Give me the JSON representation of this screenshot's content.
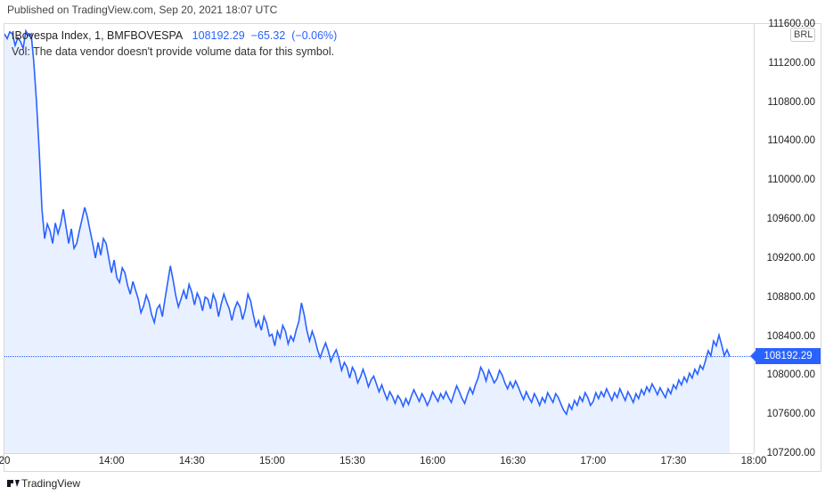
{
  "header": {
    "published_text": "Published on TradingView.com, Sep 20, 2021 18:07 UTC"
  },
  "chart": {
    "type": "area",
    "symbol": "IBovespa Index",
    "interval": "1",
    "exchange": "BMFBOVESPA",
    "last_value": "108192.29",
    "change_abs": "−65.32",
    "change_pct": "(−0.06%)",
    "volume_text": "Vol: The data vendor doesn't provide volume data for this symbol.",
    "currency": "BRL",
    "line_color": "#2962ff",
    "fill_color": "#e9f0ff",
    "background_color": "#ffffff",
    "ylim": [
      107200,
      111600
    ],
    "xlim_minutes": [
      800,
      1080
    ],
    "y_ticks": [
      111600,
      111200,
      110800,
      110400,
      110000,
      109600,
      109200,
      108800,
      108400,
      108000,
      107600,
      107200
    ],
    "x_ticks": [
      {
        "label": "20",
        "minute": 800
      },
      {
        "label": "14:00",
        "minute": 840
      },
      {
        "label": "14:30",
        "minute": 870
      },
      {
        "label": "15:00",
        "minute": 900
      },
      {
        "label": "15:30",
        "minute": 930
      },
      {
        "label": "16:00",
        "minute": 960
      },
      {
        "label": "16:30",
        "minute": 990
      },
      {
        "label": "17:00",
        "minute": 1020
      },
      {
        "label": "17:30",
        "minute": 1050
      },
      {
        "label": "18:00",
        "minute": 1080
      }
    ],
    "current_line_value": 108192.29,
    "data": [
      [
        800,
        111500
      ],
      [
        801,
        111450
      ],
      [
        802,
        111520
      ],
      [
        803,
        111500
      ],
      [
        804,
        111380
      ],
      [
        805,
        111460
      ],
      [
        806,
        111420
      ],
      [
        807,
        111350
      ],
      [
        808,
        111530
      ],
      [
        809,
        111480
      ],
      [
        810,
        111500
      ],
      [
        811,
        111200
      ],
      [
        812,
        110800
      ],
      [
        813,
        110300
      ],
      [
        814,
        109700
      ],
      [
        815,
        109400
      ],
      [
        816,
        109550
      ],
      [
        817,
        109480
      ],
      [
        818,
        109350
      ],
      [
        819,
        109560
      ],
      [
        820,
        109450
      ],
      [
        821,
        109550
      ],
      [
        822,
        109700
      ],
      [
        823,
        109520
      ],
      [
        824,
        109350
      ],
      [
        825,
        109500
      ],
      [
        826,
        109300
      ],
      [
        827,
        109350
      ],
      [
        828,
        109480
      ],
      [
        829,
        109600
      ],
      [
        830,
        109720
      ],
      [
        831,
        109620
      ],
      [
        832,
        109480
      ],
      [
        833,
        109350
      ],
      [
        834,
        109200
      ],
      [
        835,
        109360
      ],
      [
        836,
        109230
      ],
      [
        837,
        109400
      ],
      [
        838,
        109350
      ],
      [
        839,
        109200
      ],
      [
        840,
        109050
      ],
      [
        841,
        109180
      ],
      [
        842,
        109000
      ],
      [
        843,
        108950
      ],
      [
        844,
        109100
      ],
      [
        845,
        109050
      ],
      [
        846,
        108920
      ],
      [
        847,
        108830
      ],
      [
        848,
        108960
      ],
      [
        849,
        108870
      ],
      [
        850,
        108780
      ],
      [
        851,
        108640
      ],
      [
        852,
        108710
      ],
      [
        853,
        108820
      ],
      [
        854,
        108750
      ],
      [
        855,
        108620
      ],
      [
        856,
        108540
      ],
      [
        857,
        108680
      ],
      [
        858,
        108720
      ],
      [
        859,
        108600
      ],
      [
        860,
        108780
      ],
      [
        861,
        108950
      ],
      [
        862,
        109120
      ],
      [
        863,
        108980
      ],
      [
        864,
        108820
      ],
      [
        865,
        108700
      ],
      [
        866,
        108780
      ],
      [
        867,
        108870
      ],
      [
        868,
        108780
      ],
      [
        869,
        108930
      ],
      [
        870,
        108850
      ],
      [
        871,
        108720
      ],
      [
        872,
        108840
      ],
      [
        873,
        108780
      ],
      [
        874,
        108660
      ],
      [
        875,
        108800
      ],
      [
        876,
        108780
      ],
      [
        877,
        108680
      ],
      [
        878,
        108830
      ],
      [
        879,
        108760
      ],
      [
        880,
        108600
      ],
      [
        881,
        108730
      ],
      [
        882,
        108830
      ],
      [
        883,
        108750
      ],
      [
        884,
        108680
      ],
      [
        885,
        108560
      ],
      [
        886,
        108680
      ],
      [
        887,
        108750
      ],
      [
        888,
        108700
      ],
      [
        889,
        108570
      ],
      [
        890,
        108670
      ],
      [
        891,
        108830
      ],
      [
        892,
        108760
      ],
      [
        893,
        108620
      ],
      [
        894,
        108500
      ],
      [
        895,
        108560
      ],
      [
        896,
        108460
      ],
      [
        897,
        108600
      ],
      [
        898,
        108530
      ],
      [
        899,
        108400
      ],
      [
        900,
        108420
      ],
      [
        901,
        108300
      ],
      [
        902,
        108450
      ],
      [
        903,
        108380
      ],
      [
        904,
        108510
      ],
      [
        905,
        108450
      ],
      [
        906,
        108320
      ],
      [
        907,
        108400
      ],
      [
        908,
        108350
      ],
      [
        909,
        108460
      ],
      [
        910,
        108550
      ],
      [
        911,
        108740
      ],
      [
        912,
        108620
      ],
      [
        913,
        108460
      ],
      [
        914,
        108350
      ],
      [
        915,
        108450
      ],
      [
        916,
        108370
      ],
      [
        917,
        108260
      ],
      [
        918,
        108180
      ],
      [
        919,
        108260
      ],
      [
        920,
        108330
      ],
      [
        921,
        108250
      ],
      [
        922,
        108140
      ],
      [
        923,
        108210
      ],
      [
        924,
        108260
      ],
      [
        925,
        108170
      ],
      [
        926,
        108050
      ],
      [
        927,
        108130
      ],
      [
        928,
        108080
      ],
      [
        929,
        107970
      ],
      [
        930,
        108080
      ],
      [
        931,
        108030
      ],
      [
        932,
        107920
      ],
      [
        933,
        107980
      ],
      [
        934,
        108060
      ],
      [
        935,
        107980
      ],
      [
        936,
        107880
      ],
      [
        937,
        107950
      ],
      [
        938,
        107990
      ],
      [
        939,
        107910
      ],
      [
        940,
        107830
      ],
      [
        941,
        107900
      ],
      [
        942,
        107820
      ],
      [
        943,
        107750
      ],
      [
        944,
        107830
      ],
      [
        945,
        107780
      ],
      [
        946,
        107710
      ],
      [
        947,
        107790
      ],
      [
        948,
        107750
      ],
      [
        949,
        107680
      ],
      [
        950,
        107760
      ],
      [
        951,
        107700
      ],
      [
        952,
        107780
      ],
      [
        953,
        107850
      ],
      [
        954,
        107790
      ],
      [
        955,
        107730
      ],
      [
        956,
        107810
      ],
      [
        957,
        107760
      ],
      [
        958,
        107690
      ],
      [
        959,
        107750
      ],
      [
        960,
        107830
      ],
      [
        961,
        107780
      ],
      [
        962,
        107730
      ],
      [
        963,
        107810
      ],
      [
        964,
        107760
      ],
      [
        965,
        107830
      ],
      [
        966,
        107770
      ],
      [
        967,
        107720
      ],
      [
        968,
        107810
      ],
      [
        969,
        107890
      ],
      [
        970,
        107830
      ],
      [
        971,
        107760
      ],
      [
        972,
        107710
      ],
      [
        973,
        107800
      ],
      [
        974,
        107870
      ],
      [
        975,
        107810
      ],
      [
        976,
        107900
      ],
      [
        977,
        107970
      ],
      [
        978,
        108080
      ],
      [
        979,
        108030
      ],
      [
        980,
        107940
      ],
      [
        981,
        108050
      ],
      [
        982,
        107990
      ],
      [
        983,
        107920
      ],
      [
        984,
        107960
      ],
      [
        985,
        108050
      ],
      [
        986,
        108000
      ],
      [
        987,
        107920
      ],
      [
        988,
        107860
      ],
      [
        989,
        107930
      ],
      [
        990,
        107870
      ],
      [
        991,
        107940
      ],
      [
        992,
        107880
      ],
      [
        993,
        107810
      ],
      [
        994,
        107750
      ],
      [
        995,
        107830
      ],
      [
        996,
        107770
      ],
      [
        997,
        107720
      ],
      [
        998,
        107810
      ],
      [
        999,
        107760
      ],
      [
        1000,
        107690
      ],
      [
        1001,
        107770
      ],
      [
        1002,
        107720
      ],
      [
        1003,
        107820
      ],
      [
        1004,
        107770
      ],
      [
        1005,
        107720
      ],
      [
        1006,
        107810
      ],
      [
        1007,
        107770
      ],
      [
        1008,
        107700
      ],
      [
        1009,
        107640
      ],
      [
        1010,
        107600
      ],
      [
        1011,
        107700
      ],
      [
        1012,
        107650
      ],
      [
        1013,
        107740
      ],
      [
        1014,
        107690
      ],
      [
        1015,
        107780
      ],
      [
        1016,
        107730
      ],
      [
        1017,
        107820
      ],
      [
        1018,
        107770
      ],
      [
        1019,
        107690
      ],
      [
        1020,
        107730
      ],
      [
        1021,
        107820
      ],
      [
        1022,
        107760
      ],
      [
        1023,
        107830
      ],
      [
        1024,
        107780
      ],
      [
        1025,
        107860
      ],
      [
        1026,
        107800
      ],
      [
        1027,
        107740
      ],
      [
        1028,
        107820
      ],
      [
        1029,
        107770
      ],
      [
        1030,
        107860
      ],
      [
        1031,
        107800
      ],
      [
        1032,
        107740
      ],
      [
        1033,
        107830
      ],
      [
        1034,
        107780
      ],
      [
        1035,
        107720
      ],
      [
        1036,
        107810
      ],
      [
        1037,
        107760
      ],
      [
        1038,
        107850
      ],
      [
        1039,
        107800
      ],
      [
        1040,
        107880
      ],
      [
        1041,
        107830
      ],
      [
        1042,
        107910
      ],
      [
        1043,
        107860
      ],
      [
        1044,
        107800
      ],
      [
        1045,
        107870
      ],
      [
        1046,
        107820
      ],
      [
        1047,
        107770
      ],
      [
        1048,
        107860
      ],
      [
        1049,
        107810
      ],
      [
        1050,
        107900
      ],
      [
        1051,
        107860
      ],
      [
        1052,
        107950
      ],
      [
        1053,
        107900
      ],
      [
        1054,
        107980
      ],
      [
        1055,
        107930
      ],
      [
        1056,
        108020
      ],
      [
        1057,
        107970
      ],
      [
        1058,
        108060
      ],
      [
        1059,
        108010
      ],
      [
        1060,
        108100
      ],
      [
        1061,
        108060
      ],
      [
        1062,
        108150
      ],
      [
        1063,
        108250
      ],
      [
        1064,
        108200
      ],
      [
        1065,
        108350
      ],
      [
        1066,
        108300
      ],
      [
        1067,
        108410
      ],
      [
        1068,
        108310
      ],
      [
        1069,
        108200
      ],
      [
        1070,
        108260
      ],
      [
        1071,
        108192
      ]
    ]
  },
  "logo_text": "TradingView"
}
